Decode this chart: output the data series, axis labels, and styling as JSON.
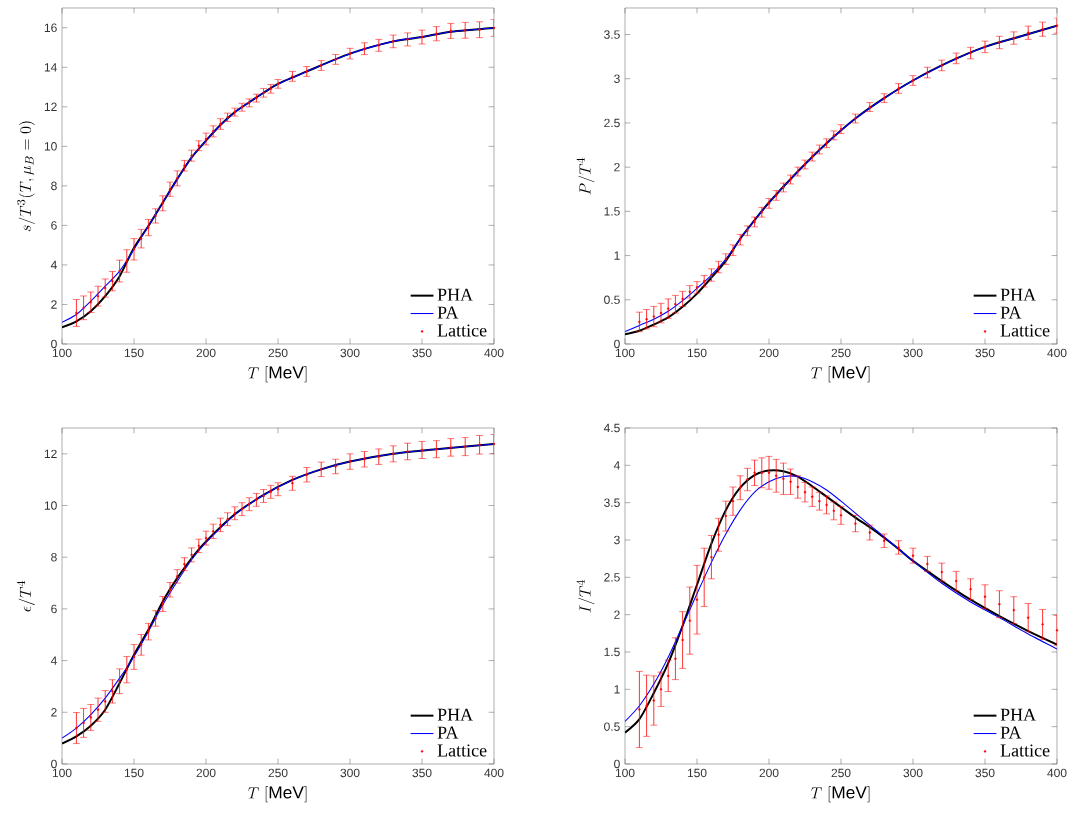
{
  "chart_data": [
    {
      "type": "line",
      "xlabel": "T\\ [\\mathrm{MeV}]",
      "ylabel": "s/T^3(T,\\mu_B=0)",
      "xlim": [
        100,
        400
      ],
      "ylim": [
        0,
        17
      ],
      "xticks": [
        100,
        150,
        200,
        250,
        300,
        350,
        400
      ],
      "yticks": [
        0,
        2,
        4,
        6,
        8,
        10,
        12,
        14,
        16
      ],
      "legend": "bottom right",
      "series": [
        {
          "name": "PHA",
          "color": "#000000",
          "x": [
            100,
            110,
            120,
            130,
            140,
            150,
            160,
            170,
            180,
            190,
            200,
            210,
            220,
            230,
            240,
            250,
            270,
            300,
            330,
            350,
            370,
            400
          ],
          "values": [
            0.85,
            1.15,
            1.66,
            2.42,
            3.43,
            4.87,
            5.97,
            7.16,
            8.34,
            9.44,
            10.29,
            11.08,
            11.73,
            12.23,
            12.71,
            13.16,
            13.79,
            14.69,
            15.31,
            15.53,
            15.8,
            15.99
          ]
        },
        {
          "name": "PA",
          "color": "#0000ff",
          "x": [
            100,
            110,
            120,
            130,
            140,
            150,
            160,
            170,
            180,
            190,
            200,
            210,
            220,
            230,
            240,
            250,
            270,
            300,
            330,
            350,
            370,
            400
          ],
          "values": [
            1.1,
            1.49,
            2.17,
            2.93,
            3.69,
            4.79,
            5.97,
            7.16,
            8.34,
            9.44,
            10.29,
            11.08,
            11.73,
            12.23,
            12.71,
            13.16,
            13.79,
            14.69,
            15.31,
            15.53,
            15.8,
            15.99
          ]
        },
        {
          "name": "Lattice",
          "type": "scatter",
          "color": "#ff0000",
          "x": [
            110,
            115,
            120,
            125,
            130,
            135,
            140,
            145,
            150,
            155,
            160,
            165,
            170,
            175,
            180,
            185,
            190,
            195,
            200,
            205,
            210,
            215,
            220,
            225,
            230,
            235,
            240,
            245,
            250,
            260,
            270,
            280,
            290,
            300,
            310,
            320,
            330,
            340,
            350,
            360,
            370,
            380,
            390,
            400
          ],
          "values": [
            1.57,
            1.83,
            2.11,
            2.42,
            2.83,
            3.18,
            3.69,
            4.2,
            4.79,
            5.33,
            5.89,
            6.48,
            7.12,
            7.83,
            8.38,
            9.02,
            9.53,
            10.03,
            10.37,
            10.76,
            11.13,
            11.47,
            11.73,
            11.98,
            12.2,
            12.44,
            12.71,
            12.91,
            13.16,
            13.54,
            13.79,
            14.09,
            14.4,
            14.69,
            14.94,
            15.11,
            15.31,
            15.41,
            15.53,
            15.7,
            15.84,
            15.87,
            15.9,
            15.99
          ],
          "errors": [
            0.68,
            0.6,
            0.52,
            0.5,
            0.46,
            0.49,
            0.55,
            0.57,
            0.54,
            0.47,
            0.41,
            0.36,
            0.38,
            0.36,
            0.38,
            0.27,
            0.28,
            0.25,
            0.3,
            0.28,
            0.27,
            0.21,
            0.2,
            0.2,
            0.2,
            0.2,
            0.22,
            0.22,
            0.22,
            0.25,
            0.25,
            0.25,
            0.25,
            0.27,
            0.3,
            0.3,
            0.32,
            0.33,
            0.35,
            0.36,
            0.38,
            0.4,
            0.4,
            0.42
          ]
        }
      ]
    },
    {
      "type": "line",
      "xlabel": "T\\ [\\mathrm{MeV}]",
      "ylabel": "P/T^4",
      "xlim": [
        100,
        400
      ],
      "ylim": [
        0,
        3.8
      ],
      "xticks": [
        100,
        150,
        200,
        250,
        300,
        350,
        400
      ],
      "yticks": [
        0,
        0.5,
        1,
        1.5,
        2,
        2.5,
        3,
        3.5
      ],
      "legend": "bottom right",
      "series": [
        {
          "name": "PHA",
          "color": "#000000",
          "x": [
            100,
            110,
            120,
            130,
            140,
            150,
            160,
            170,
            180,
            190,
            200,
            220,
            240,
            260,
            280,
            300,
            325,
            350,
            375,
            400
          ],
          "values": [
            0.11,
            0.15,
            0.22,
            0.3,
            0.42,
            0.57,
            0.75,
            0.94,
            1.19,
            1.4,
            1.6,
            1.95,
            2.27,
            2.55,
            2.78,
            2.98,
            3.19,
            3.36,
            3.48,
            3.6
          ]
        },
        {
          "name": "PA",
          "color": "#0000ff",
          "x": [
            100,
            110,
            120,
            130,
            140,
            150,
            160,
            170,
            180,
            190,
            200,
            220,
            240,
            260,
            280,
            300,
            325,
            350,
            375,
            400
          ],
          "values": [
            0.14,
            0.21,
            0.28,
            0.37,
            0.49,
            0.63,
            0.78,
            0.96,
            1.19,
            1.4,
            1.6,
            1.95,
            2.27,
            2.55,
            2.78,
            2.98,
            3.19,
            3.36,
            3.48,
            3.6
          ]
        },
        {
          "name": "Lattice",
          "type": "scatter",
          "color": "#ff0000",
          "x": [
            110,
            115,
            120,
            125,
            130,
            135,
            140,
            145,
            150,
            155,
            160,
            165,
            170,
            175,
            180,
            185,
            190,
            195,
            200,
            205,
            210,
            215,
            220,
            225,
            230,
            235,
            240,
            245,
            250,
            260,
            270,
            280,
            290,
            300,
            310,
            320,
            330,
            340,
            350,
            360,
            370,
            380,
            390,
            400
          ],
          "values": [
            0.25,
            0.28,
            0.31,
            0.35,
            0.4,
            0.45,
            0.51,
            0.59,
            0.64,
            0.71,
            0.78,
            0.87,
            0.96,
            1.06,
            1.18,
            1.28,
            1.38,
            1.49,
            1.59,
            1.68,
            1.77,
            1.86,
            1.95,
            2.03,
            2.12,
            2.2,
            2.27,
            2.36,
            2.43,
            2.55,
            2.68,
            2.78,
            2.89,
            2.98,
            3.07,
            3.15,
            3.23,
            3.29,
            3.36,
            3.41,
            3.46,
            3.52,
            3.56,
            3.6
          ],
          "errors": [
            0.11,
            0.11,
            0.115,
            0.11,
            0.11,
            0.1,
            0.085,
            0.07,
            0.065,
            0.065,
            0.07,
            0.065,
            0.06,
            0.06,
            0.06,
            0.055,
            0.055,
            0.055,
            0.055,
            0.055,
            0.05,
            0.05,
            0.05,
            0.05,
            0.05,
            0.05,
            0.05,
            0.05,
            0.05,
            0.05,
            0.05,
            0.05,
            0.055,
            0.055,
            0.06,
            0.06,
            0.06,
            0.065,
            0.065,
            0.07,
            0.07,
            0.075,
            0.08,
            0.085
          ]
        }
      ]
    },
    {
      "type": "line",
      "xlabel": "T\\ [\\mathrm{MeV}]",
      "ylabel": "\\epsilon/T^4",
      "xlim": [
        100,
        400
      ],
      "ylim": [
        0,
        13
      ],
      "xticks": [
        100,
        150,
        200,
        250,
        300,
        350,
        400
      ],
      "yticks": [
        0,
        2,
        4,
        6,
        8,
        10,
        12
      ],
      "legend": "bottom right",
      "series": [
        {
          "name": "PHA",
          "color": "#000000",
          "x": [
            100,
            110,
            120,
            130,
            140,
            150,
            160,
            170,
            180,
            190,
            200,
            220,
            240,
            260,
            280,
            300,
            330,
            360,
            400
          ],
          "values": [
            0.79,
            1.07,
            1.48,
            2.1,
            3.13,
            4.23,
            5.19,
            6.29,
            7.19,
            7.96,
            8.61,
            9.66,
            10.41,
            10.99,
            11.4,
            11.7,
            12.0,
            12.18,
            12.38
          ]
        },
        {
          "name": "PA",
          "color": "#0000ff",
          "x": [
            100,
            110,
            120,
            130,
            140,
            150,
            160,
            170,
            180,
            190,
            200,
            220,
            240,
            260,
            280,
            300,
            330,
            360,
            400
          ],
          "values": [
            1.0,
            1.39,
            1.91,
            2.55,
            3.32,
            4.16,
            5.13,
            6.16,
            7.06,
            7.9,
            8.57,
            9.64,
            10.41,
            10.99,
            11.4,
            11.7,
            12.0,
            12.18,
            12.38
          ]
        },
        {
          "name": "Lattice",
          "type": "scatter",
          "color": "#ff0000",
          "x": [
            110,
            115,
            120,
            125,
            130,
            135,
            140,
            145,
            150,
            155,
            160,
            165,
            170,
            175,
            180,
            185,
            190,
            195,
            200,
            205,
            210,
            215,
            220,
            225,
            230,
            235,
            240,
            245,
            250,
            260,
            270,
            280,
            290,
            300,
            310,
            320,
            330,
            340,
            350,
            360,
            370,
            380,
            390,
            400
          ],
          "values": [
            1.39,
            1.59,
            1.8,
            2.1,
            2.42,
            2.81,
            3.2,
            3.65,
            4.14,
            4.61,
            5.12,
            5.63,
            6.19,
            6.74,
            7.26,
            7.73,
            8.09,
            8.44,
            8.74,
            9.0,
            9.25,
            9.47,
            9.7,
            9.86,
            10.05,
            10.22,
            10.37,
            10.53,
            10.63,
            10.86,
            11.19,
            11.4,
            11.51,
            11.7,
            11.79,
            11.89,
            12.0,
            12.09,
            12.15,
            12.18,
            12.25,
            12.28,
            12.35,
            12.38
          ],
          "errors": [
            0.6,
            0.56,
            0.5,
            0.45,
            0.42,
            0.45,
            0.48,
            0.51,
            0.48,
            0.4,
            0.32,
            0.3,
            0.29,
            0.28,
            0.26,
            0.25,
            0.27,
            0.26,
            0.27,
            0.28,
            0.26,
            0.25,
            0.25,
            0.25,
            0.25,
            0.25,
            0.25,
            0.25,
            0.25,
            0.27,
            0.28,
            0.28,
            0.28,
            0.3,
            0.3,
            0.3,
            0.31,
            0.32,
            0.33,
            0.33,
            0.34,
            0.35,
            0.36,
            0.37
          ]
        }
      ]
    },
    {
      "type": "line",
      "xlabel": "T\\ [\\mathrm{MeV}]",
      "ylabel": "I/T^4",
      "xlim": [
        100,
        400
      ],
      "ylim": [
        0,
        4.5
      ],
      "xticks": [
        100,
        150,
        200,
        250,
        300,
        350,
        400
      ],
      "yticks": [
        0,
        0.5,
        1,
        1.5,
        2,
        2.5,
        3,
        3.5,
        4,
        4.5
      ],
      "legend": "bottom right",
      "series": [
        {
          "name": "PHA",
          "color": "#000000",
          "x": [
            100,
            110,
            120,
            130,
            140,
            150,
            160,
            170,
            180,
            190,
            200,
            210,
            220,
            230,
            240,
            250,
            260,
            270,
            280,
            290,
            300,
            320,
            340,
            360,
            380,
            400
          ],
          "values": [
            0.42,
            0.6,
            0.95,
            1.35,
            1.85,
            2.4,
            2.95,
            3.4,
            3.7,
            3.87,
            3.93,
            3.92,
            3.85,
            3.72,
            3.58,
            3.44,
            3.3,
            3.17,
            3.03,
            2.88,
            2.72,
            2.45,
            2.2,
            1.98,
            1.78,
            1.6
          ]
        },
        {
          "name": "PA",
          "color": "#0000ff",
          "x": [
            100,
            110,
            120,
            130,
            140,
            150,
            160,
            170,
            180,
            190,
            200,
            210,
            220,
            230,
            240,
            250,
            260,
            270,
            280,
            290,
            300,
            320,
            340,
            360,
            380,
            400
          ],
          "values": [
            0.57,
            0.78,
            1.07,
            1.43,
            1.85,
            2.28,
            2.7,
            3.08,
            3.4,
            3.64,
            3.78,
            3.85,
            3.85,
            3.78,
            3.67,
            3.52,
            3.36,
            3.2,
            3.04,
            2.88,
            2.72,
            2.42,
            2.17,
            1.96,
            1.74,
            1.54
          ]
        },
        {
          "name": "Lattice",
          "type": "scatter",
          "color": "#ff0000",
          "x": [
            110,
            115,
            120,
            125,
            130,
            135,
            140,
            145,
            150,
            155,
            160,
            165,
            170,
            175,
            180,
            185,
            190,
            195,
            200,
            205,
            210,
            215,
            220,
            225,
            230,
            235,
            240,
            245,
            250,
            260,
            270,
            280,
            290,
            300,
            310,
            320,
            330,
            340,
            350,
            360,
            370,
            380,
            390,
            400
          ],
          "values": [
            0.73,
            0.78,
            0.85,
            1.0,
            1.18,
            1.41,
            1.66,
            1.92,
            2.2,
            2.5,
            2.77,
            3.07,
            3.32,
            3.52,
            3.7,
            3.81,
            3.9,
            3.9,
            3.9,
            3.86,
            3.82,
            3.78,
            3.71,
            3.64,
            3.58,
            3.52,
            3.47,
            3.39,
            3.33,
            3.22,
            3.1,
            2.99,
            2.9,
            2.79,
            2.68,
            2.57,
            2.45,
            2.34,
            2.24,
            2.14,
            2.06,
            1.96,
            1.87,
            1.79
          ],
          "errors": [
            0.51,
            0.41,
            0.33,
            0.23,
            0.21,
            0.28,
            0.38,
            0.45,
            0.46,
            0.39,
            0.29,
            0.22,
            0.2,
            0.19,
            0.16,
            0.15,
            0.17,
            0.2,
            0.22,
            0.22,
            0.21,
            0.17,
            0.15,
            0.13,
            0.13,
            0.12,
            0.12,
            0.12,
            0.12,
            0.11,
            0.1,
            0.09,
            0.09,
            0.1,
            0.1,
            0.12,
            0.13,
            0.14,
            0.16,
            0.18,
            0.18,
            0.19,
            0.2,
            0.2
          ]
        }
      ]
    }
  ]
}
